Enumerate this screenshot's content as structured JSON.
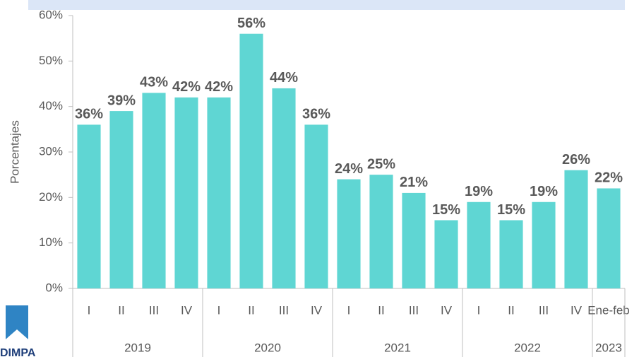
{
  "chart_data": {
    "type": "bar",
    "y_label": "Porcentajes",
    "logo": "DIMPA",
    "groups": [
      {
        "name": "2019",
        "categories": [
          "I",
          "II",
          "III",
          "IV"
        ]
      },
      {
        "name": "2020",
        "categories": [
          "I",
          "II",
          "III",
          "IV"
        ]
      },
      {
        "name": "2021",
        "categories": [
          "I",
          "II",
          "III",
          "IV"
        ]
      },
      {
        "name": "2022",
        "categories": [
          "I",
          "II",
          "III",
          "IV"
        ]
      },
      {
        "name": "2023",
        "categories": [
          "Ene-feb"
        ]
      }
    ],
    "values": [
      36,
      39,
      43,
      42,
      42,
      56,
      44,
      36,
      24,
      25,
      21,
      15,
      19,
      15,
      19,
      26,
      22
    ],
    "value_labels": [
      "36%",
      "39%",
      "43%",
      "42%",
      "42%",
      "56%",
      "44%",
      "36%",
      "24%",
      "25%",
      "21%",
      "15%",
      "19%",
      "15%",
      "19%",
      "26%",
      "22%"
    ],
    "color": "#5fd6d3",
    "ylim": [
      0,
      60
    ],
    "yticks": [
      {
        "value": 0,
        "label": "0%"
      },
      {
        "value": 10,
        "label": "10%"
      },
      {
        "value": 20,
        "label": "20%"
      },
      {
        "value": 30,
        "label": "30%"
      },
      {
        "value": 40,
        "label": "40%"
      },
      {
        "value": 50,
        "label": "50%"
      },
      {
        "value": 60,
        "label": "60%"
      }
    ]
  }
}
